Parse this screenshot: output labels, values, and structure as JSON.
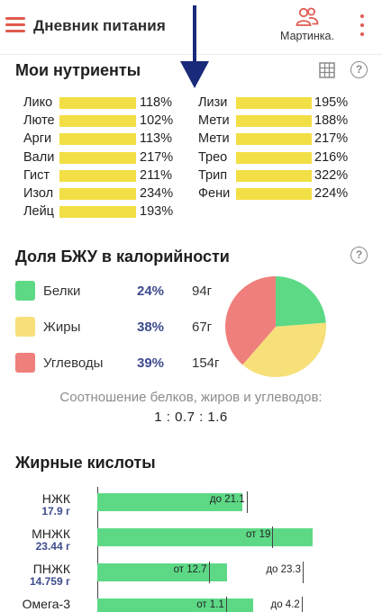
{
  "header": {
    "title": "Дневник питания",
    "profile_name": "Мартинка."
  },
  "nutrients": {
    "title": "Мои нутриенты",
    "left": [
      {
        "name": "Лико",
        "percent": "118%",
        "fill": 1.0
      },
      {
        "name": "Люте",
        "percent": "102%",
        "fill": 1.0
      },
      {
        "name": "Арги",
        "percent": "113%",
        "fill": 1.0
      },
      {
        "name": "Вали",
        "percent": "217%",
        "fill": 1.0
      },
      {
        "name": "Гист",
        "percent": "211%",
        "fill": 1.0
      },
      {
        "name": "Изол",
        "percent": "234%",
        "fill": 1.0
      },
      {
        "name": "Лейц",
        "percent": "193%",
        "fill": 1.0
      }
    ],
    "right": [
      {
        "name": "Лизи",
        "percent": "195%",
        "fill": 1.0
      },
      {
        "name": "Мети",
        "percent": "188%",
        "fill": 1.0
      },
      {
        "name": "Мети",
        "percent": "217%",
        "fill": 1.0
      },
      {
        "name": "Трео",
        "percent": "216%",
        "fill": 1.0
      },
      {
        "name": "Трип",
        "percent": "322%",
        "fill": 1.0
      },
      {
        "name": "Фени",
        "percent": "224%",
        "fill": 1.0
      }
    ],
    "bar_color": "#f2df45"
  },
  "macros": {
    "title": "Доля БЖУ в калорийности",
    "items": [
      {
        "label": "Белки",
        "percent": "24%",
        "grams": "94г",
        "color": "#5dd986"
      },
      {
        "label": "Жиры",
        "percent": "38%",
        "grams": "67г",
        "color": "#f7e07a"
      },
      {
        "label": "Углеводы",
        "percent": "39%",
        "grams": "154г",
        "color": "#ef7f7c"
      }
    ],
    "ratio_caption": "Соотношение белков, жиров и углеводов:",
    "ratio_value": "1 : 0.7 : 1.6"
  },
  "chart_data": {
    "type": "pie",
    "title": "",
    "categories": [
      "Белки",
      "Жиры",
      "Углеводы"
    ],
    "values": [
      24,
      38,
      39
    ],
    "colors": [
      "#5dd986",
      "#f7e07a",
      "#ef7f7c"
    ]
  },
  "fatty_acids": {
    "title": "Жирные кислоты",
    "items": [
      {
        "name": "НЖК",
        "value": "17.9 г",
        "fill": 0.67,
        "limits": [
          {
            "text": "до 21.1",
            "pos": 0.69
          }
        ]
      },
      {
        "name": "МНЖК",
        "value": "23.44 г",
        "fill": 0.995,
        "limits": [
          {
            "text": "от 19",
            "pos": 0.81
          }
        ]
      },
      {
        "name": "ПНЖК",
        "value": "14.759 г",
        "fill": 0.6,
        "limits": [
          {
            "text": "от 12.7",
            "pos": 0.515
          },
          {
            "text": "до 23.3",
            "pos": 0.95
          }
        ]
      },
      {
        "name": "Омега-3",
        "value": "",
        "fill": 0.72,
        "limits": [
          {
            "text": "от 1.1",
            "pos": 0.595
          },
          {
            "text": "до 4.2",
            "pos": 0.945
          }
        ]
      }
    ],
    "bar_color": "#5dd986"
  }
}
